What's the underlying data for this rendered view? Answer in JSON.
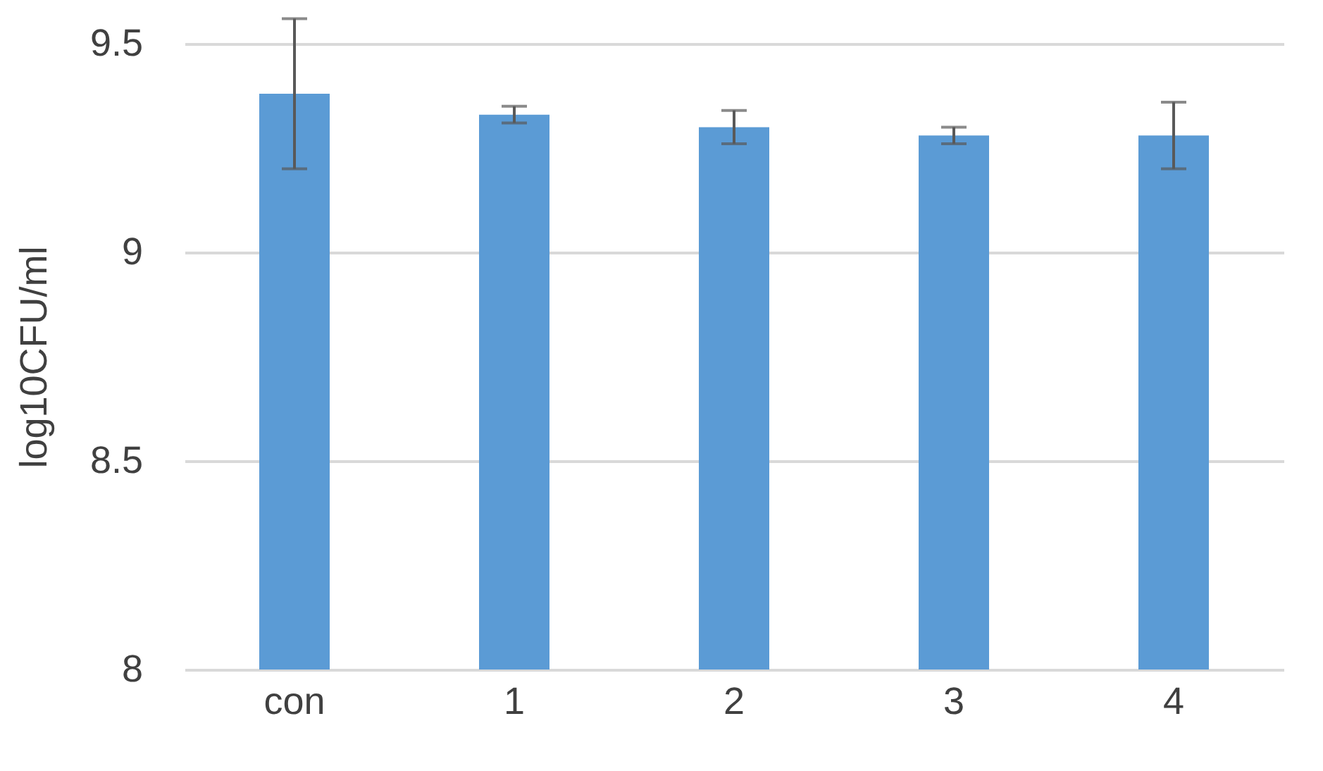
{
  "chart_data": {
    "type": "bar",
    "ylabel": "log10CFU/ml",
    "categories": [
      "con",
      "1",
      "2",
      "3",
      "4"
    ],
    "values": [
      9.38,
      9.33,
      9.3,
      9.28,
      9.28
    ],
    "errors": [
      0.18,
      0.02,
      0.04,
      0.02,
      0.08
    ],
    "color": "#5b9bd5",
    "ylim": [
      8,
      9.5
    ],
    "yticks": [
      8,
      8.5,
      9,
      9.5
    ],
    "grid": "y"
  }
}
